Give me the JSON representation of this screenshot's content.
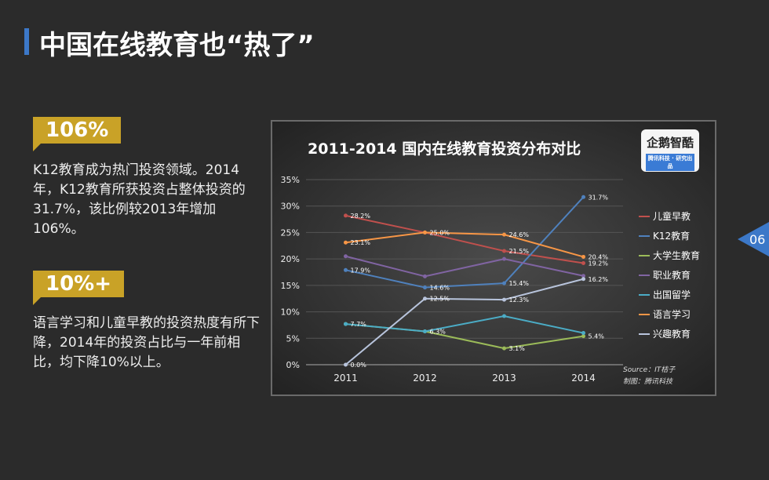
{
  "title": "中国在线教育也“热了”",
  "page_number": "06",
  "left": {
    "tag1": "106%",
    "para1": "K12教育成为热门投资领域。2014年，K12教育所获投资占整体投资的31.7%，该比例较2013年增加106%。",
    "tag2": "10%+",
    "para2": "语言学习和儿童早教的投资热度有所下降，2014年的投资占比与一年前相比，均下降10%以上。"
  },
  "logo": {
    "name": "企鹅智酷",
    "sub": "腾讯科技 · 研究出品"
  },
  "source": "Source：IT桔子",
  "maker": "制图：腾讯科技",
  "chart_data": {
    "type": "line",
    "title": "2011-2014 国内在线教育投资分布对比",
    "categories": [
      "2011",
      "2012",
      "2013",
      "2014"
    ],
    "ylim": [
      0,
      35
    ],
    "yticks": [
      "0%",
      "5%",
      "10%",
      "15%",
      "20%",
      "25%",
      "30%",
      "35%"
    ],
    "grid": true,
    "legend_position": "right",
    "series": [
      {
        "name": "儿童早教",
        "color": "#c0504d",
        "values": [
          28.2,
          25.0,
          21.5,
          19.2
        ],
        "labels": [
          "28.2%",
          "",
          "21.5%",
          "19.2%"
        ]
      },
      {
        "name": "K12教育",
        "color": "#4f81bd",
        "values": [
          17.9,
          14.6,
          15.4,
          31.7
        ],
        "labels": [
          "17.9%",
          "14.6%",
          "15.4%",
          "31.7%"
        ]
      },
      {
        "name": "大学生教育",
        "color": "#9bbb59",
        "values": [
          7.7,
          6.3,
          3.1,
          5.4
        ],
        "labels": [
          "",
          "",
          "3.1%",
          "5.4%"
        ]
      },
      {
        "name": "职业教育",
        "color": "#8064a2",
        "values": [
          20.5,
          16.7,
          20.0,
          16.8
        ],
        "labels": [
          "",
          "",
          "",
          ""
        ]
      },
      {
        "name": "出国留学",
        "color": "#4bacc6",
        "values": [
          7.7,
          6.3,
          9.2,
          6.0
        ],
        "labels": [
          "7.7%",
          "6.3%",
          "",
          ""
        ]
      },
      {
        "name": "语言学习",
        "color": "#f79646",
        "values": [
          23.1,
          25.0,
          24.6,
          20.4
        ],
        "labels": [
          "23.1%",
          "25.0%",
          "24.6%",
          "20.4%"
        ]
      },
      {
        "name": "兴趣教育",
        "color": "#b8c4dc",
        "values": [
          0.0,
          12.5,
          12.3,
          16.2
        ],
        "labels": [
          "0.0%",
          "12.5%",
          "12.3%",
          "16.2%"
        ]
      }
    ]
  }
}
